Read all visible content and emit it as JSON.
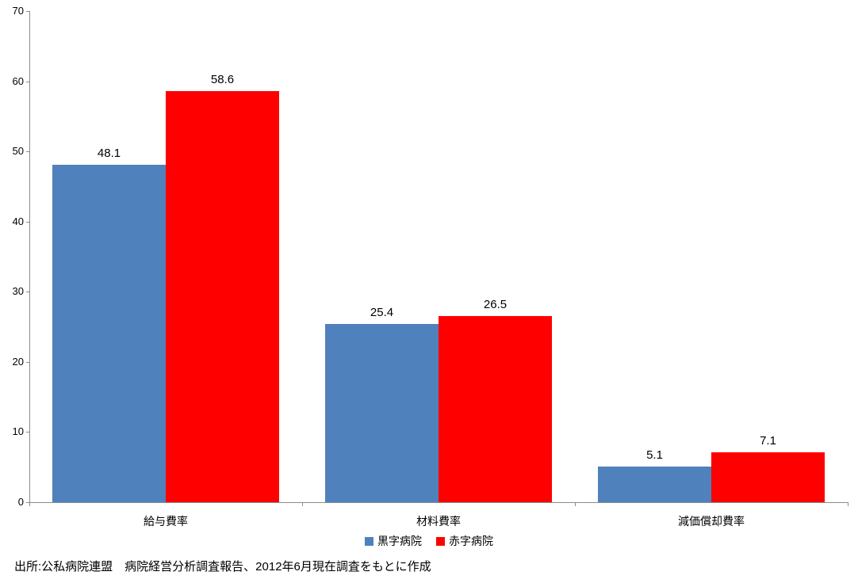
{
  "chart_data": {
    "type": "bar",
    "title": "",
    "categories": [
      "給与費率",
      "材料費率",
      "減価償却費率"
    ],
    "series": [
      {
        "name": "黒字病院",
        "color": "#4F81BD",
        "values": [
          48.1,
          25.4,
          5.1
        ]
      },
      {
        "name": "赤字病院",
        "color": "#FF0000",
        "values": [
          58.6,
          26.5,
          7.1
        ]
      }
    ],
    "xlabel": "",
    "ylabel": "",
    "ylim": [
      0,
      70
    ],
    "yticks": [
      0,
      10,
      20,
      30,
      40,
      50,
      60,
      70
    ],
    "grid": false,
    "value_labels": true,
    "legend_position": "bottom",
    "source": "出所:公私病院連盟　病院経営分析調査報告、2012年6月現在調査をもとに作成"
  },
  "colors": {
    "axis": "#8C8C8C",
    "text": "#000000",
    "background": "#FFFFFF"
  }
}
